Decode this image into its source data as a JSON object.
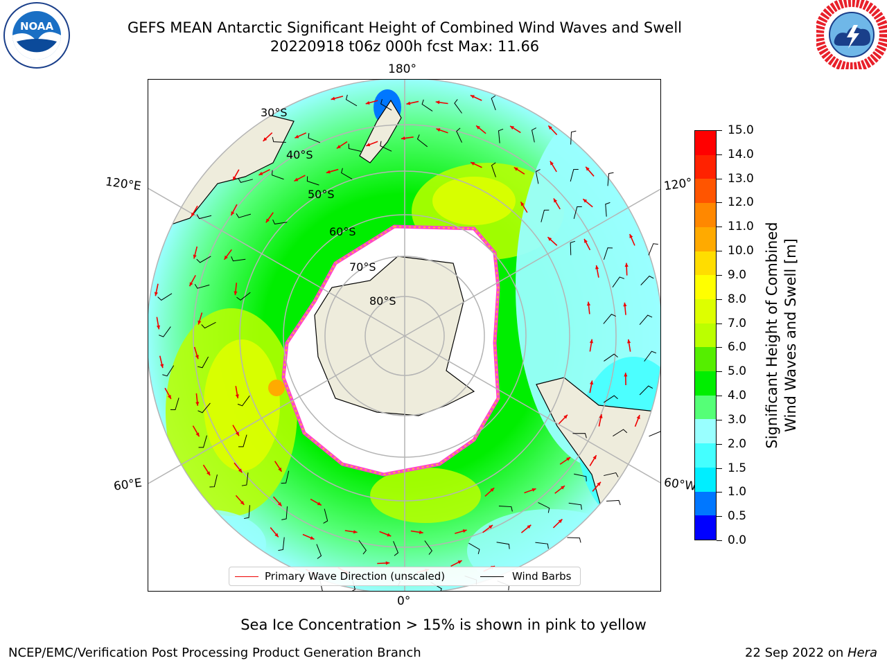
{
  "header": {
    "title_line1": "GEFS MEAN Antarctic Significant Height of Combined Wind Waves and Swell",
    "title_line2": "20220918 t06z 000h fcst   Max: 11.66"
  },
  "logos": {
    "noaa_text": "NOAA",
    "nws_ring_text": "NATIONAL WEATHER SERVICE"
  },
  "map": {
    "projection": "south-polar-stereographic",
    "longitude_labels": [
      "180°",
      "120°E",
      "120°",
      "60°E",
      "60°W",
      "0°"
    ],
    "latitude_labels": [
      "30°S",
      "40°S",
      "50°S",
      "60°S",
      "70°S",
      "80°S"
    ],
    "colors": {
      "land": "#eeecdc",
      "ice": "#ffffff",
      "ice_edge_pink": "#ff44cc",
      "ice_edge_yellow": "#ffbb33",
      "grid": "#b4b4b4",
      "arrow": "#ee0000"
    }
  },
  "legend": {
    "wave_direction_label": "Primary Wave Direction (unscaled)",
    "wind_barbs_label": "Wind Barbs",
    "wave_color": "#ee0000",
    "barb_color": "#000000"
  },
  "colorbar": {
    "label_line1": "Significant Height of Combined",
    "label_line2": "Wind Waves and Swell [m]",
    "ticks": [
      "0.0",
      "0.5",
      "1.0",
      "1.5",
      "2.0",
      "3.0",
      "4.0",
      "5.0",
      "6.0",
      "7.0",
      "8.0",
      "9.0",
      "10.0",
      "11.0",
      "12.0",
      "13.0",
      "14.0",
      "15.0"
    ],
    "colors": [
      "#0000ff",
      "#0077ff",
      "#00eeff",
      "#44ffff",
      "#99ffff",
      "#55ff77",
      "#00ee00",
      "#55ee00",
      "#bbff00",
      "#ddff00",
      "#ffff00",
      "#ffdd00",
      "#ffaa00",
      "#ff8800",
      "#ff5500",
      "#ff2200",
      "#ff0000"
    ]
  },
  "footer": {
    "note": "Sea Ice Concentration > 15% is shown in pink to yellow",
    "credit": "NCEP/EMC/Verification Post Processing Product Generation Branch",
    "date_prefix": "22 Sep 2022 on ",
    "date_machine": "Hera"
  }
}
